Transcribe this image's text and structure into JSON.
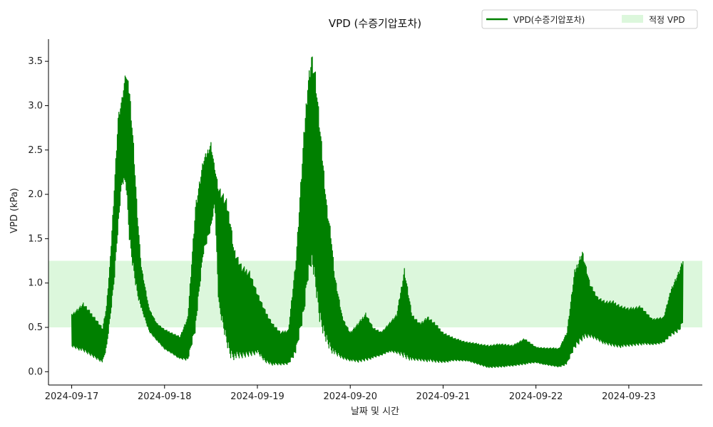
{
  "chart_data": {
    "type": "line",
    "title": "VPD (수증기압포차)",
    "xlabel": "날짜 및 시간",
    "ylabel": "VPD (kPa)",
    "x_ticks": [
      "2024-09-17",
      "2024-09-18",
      "2024-09-19",
      "2024-09-20",
      "2024-09-21",
      "2024-09-22",
      "2024-09-23"
    ],
    "y_ticks": [
      "0.0",
      "0.5",
      "1.0",
      "1.5",
      "2.0",
      "2.5",
      "3.0",
      "3.5"
    ],
    "xlim": [
      "2024-09-16 18:00",
      "2024-09-23 19:00"
    ],
    "ylim": [
      -0.15,
      3.75
    ],
    "grid": false,
    "legend_position": "top-right",
    "colors": {
      "series": "#008000",
      "band": "#dcf7dc"
    },
    "optimal_band": {
      "name": "적정 VPD",
      "low": 0.5,
      "high": 1.25
    },
    "series": [
      {
        "name": "VPD(수증기압포차)",
        "note_envelope": "upper/lower envelope of the densely oscillating line",
        "x": [
          "2024-09-17 00:00",
          "2024-09-17 03:00",
          "2024-09-17 06:00",
          "2024-09-17 08:00",
          "2024-09-17 09:00",
          "2024-09-17 10:00",
          "2024-09-17 11:00",
          "2024-09-17 12:00",
          "2024-09-17 13:00",
          "2024-09-17 14:00",
          "2024-09-17 15:00",
          "2024-09-17 16:00",
          "2024-09-17 17:00",
          "2024-09-17 18:00",
          "2024-09-17 20:00",
          "2024-09-17 22:00",
          "2024-09-18 00:00",
          "2024-09-18 02:00",
          "2024-09-18 04:00",
          "2024-09-18 06:00",
          "2024-09-18 08:00",
          "2024-09-18 10:00",
          "2024-09-18 12:00",
          "2024-09-18 13:00",
          "2024-09-18 14:00",
          "2024-09-18 16:00",
          "2024-09-18 17:00",
          "2024-09-18 18:00",
          "2024-09-18 20:00",
          "2024-09-18 22:00",
          "2024-09-19 00:00",
          "2024-09-19 02:00",
          "2024-09-19 04:00",
          "2024-09-19 06:00",
          "2024-09-19 08:00",
          "2024-09-19 10:00",
          "2024-09-19 12:00",
          "2024-09-19 13:00",
          "2024-09-19 14:00",
          "2024-09-19 15:00",
          "2024-09-19 16:00",
          "2024-09-19 17:00",
          "2024-09-19 18:00",
          "2024-09-19 19:00",
          "2024-09-19 20:00",
          "2024-09-19 22:00",
          "2024-09-20 00:00",
          "2024-09-20 02:00",
          "2024-09-20 04:00",
          "2024-09-20 06:00",
          "2024-09-20 08:00",
          "2024-09-20 10:00",
          "2024-09-20 12:00",
          "2024-09-20 14:00",
          "2024-09-20 16:00",
          "2024-09-20 18:00",
          "2024-09-20 20:00",
          "2024-09-20 22:00",
          "2024-09-21 00:00",
          "2024-09-21 03:00",
          "2024-09-21 06:00",
          "2024-09-21 09:00",
          "2024-09-21 12:00",
          "2024-09-21 15:00",
          "2024-09-21 18:00",
          "2024-09-21 21:00",
          "2024-09-22 00:00",
          "2024-09-22 03:00",
          "2024-09-22 06:00",
          "2024-09-22 08:00",
          "2024-09-22 10:00",
          "2024-09-22 12:00",
          "2024-09-22 14:00",
          "2024-09-22 16:00",
          "2024-09-22 18:00",
          "2024-09-22 20:00",
          "2024-09-22 22:00",
          "2024-09-23 00:00",
          "2024-09-23 03:00",
          "2024-09-23 06:00",
          "2024-09-23 09:00",
          "2024-09-23 11:00",
          "2024-09-23 13:00",
          "2024-09-23 14:00"
        ],
        "upper": [
          0.65,
          0.78,
          0.62,
          0.5,
          0.75,
          1.3,
          2.1,
          2.9,
          3.1,
          3.4,
          3.2,
          2.6,
          1.8,
          1.2,
          0.72,
          0.55,
          0.48,
          0.44,
          0.4,
          0.62,
          1.9,
          2.4,
          2.6,
          2.3,
          2.1,
          1.95,
          1.75,
          1.4,
          1.2,
          1.15,
          0.9,
          0.7,
          0.55,
          0.45,
          0.48,
          1.3,
          2.7,
          3.3,
          3.62,
          3.4,
          2.9,
          2.4,
          1.9,
          1.6,
          1.1,
          0.62,
          0.45,
          0.55,
          0.67,
          0.5,
          0.45,
          0.55,
          0.65,
          1.18,
          0.65,
          0.55,
          0.63,
          0.55,
          0.45,
          0.38,
          0.34,
          0.32,
          0.3,
          0.32,
          0.3,
          0.38,
          0.28,
          0.27,
          0.27,
          0.45,
          1.15,
          1.38,
          1.0,
          0.85,
          0.8,
          0.8,
          0.75,
          0.72,
          0.75,
          0.6,
          0.62,
          0.95,
          1.15,
          1.28
        ],
        "lower": [
          0.28,
          0.22,
          0.15,
          0.1,
          0.25,
          0.6,
          1.0,
          1.6,
          2.1,
          2.1,
          1.4,
          1.1,
          0.85,
          0.7,
          0.45,
          0.35,
          0.25,
          0.2,
          0.14,
          0.12,
          0.45,
          1.3,
          1.6,
          1.9,
          0.7,
          0.3,
          0.15,
          0.13,
          0.14,
          0.17,
          0.2,
          0.1,
          0.07,
          0.07,
          0.08,
          0.2,
          0.6,
          1.0,
          1.2,
          0.9,
          0.55,
          0.4,
          0.3,
          0.22,
          0.18,
          0.14,
          0.12,
          0.1,
          0.12,
          0.15,
          0.18,
          0.22,
          0.2,
          0.15,
          0.12,
          0.12,
          0.11,
          0.1,
          0.1,
          0.12,
          0.12,
          0.08,
          0.04,
          0.05,
          0.06,
          0.08,
          0.1,
          0.07,
          0.05,
          0.08,
          0.25,
          0.35,
          0.38,
          0.35,
          0.3,
          0.28,
          0.27,
          0.28,
          0.3,
          0.3,
          0.32,
          0.4,
          0.45,
          0.55
        ]
      }
    ]
  }
}
